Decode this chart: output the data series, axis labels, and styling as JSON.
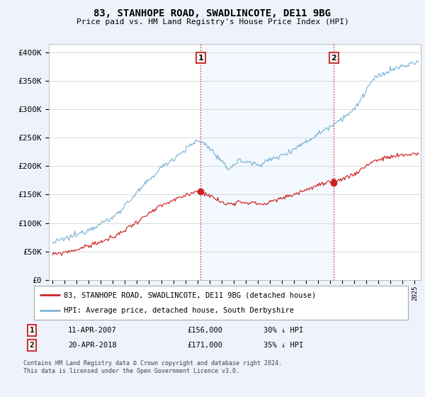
{
  "title": "83, STANHOPE ROAD, SWADLINCOTE, DE11 9BG",
  "subtitle": "Price paid vs. HM Land Registry's House Price Index (HPI)",
  "ylabel_ticks": [
    "£0",
    "£50K",
    "£100K",
    "£150K",
    "£200K",
    "£250K",
    "£300K",
    "£350K",
    "£400K"
  ],
  "ytick_values": [
    0,
    50000,
    100000,
    150000,
    200000,
    250000,
    300000,
    350000,
    400000
  ],
  "ylim": [
    0,
    415000
  ],
  "hpi_color": "#7fb3d3",
  "price_color": "#cc2222",
  "vline_color": "#cc3333",
  "marker1_year": 2007.28,
  "marker1_price": 156000,
  "marker2_year": 2018.3,
  "marker2_price": 171000,
  "legend_label1": "83, STANHOPE ROAD, SWADLINCOTE, DE11 9BG (detached house)",
  "legend_label2": "HPI: Average price, detached house, South Derbyshire",
  "table_row1_num": "1",
  "table_row1_date": "11-APR-2007",
  "table_row1_price": "£156,000",
  "table_row1_hpi": "30% ↓ HPI",
  "table_row2_num": "2",
  "table_row2_date": "20-APR-2018",
  "table_row2_price": "£171,000",
  "table_row2_hpi": "35% ↓ HPI",
  "footer": "Contains HM Land Registry data © Crown copyright and database right 2024.\nThis data is licensed under the Open Government Licence v3.0.",
  "background_color": "#eef2fb",
  "plot_bg_color": "#ffffff",
  "shade_color": "#ddeeff"
}
